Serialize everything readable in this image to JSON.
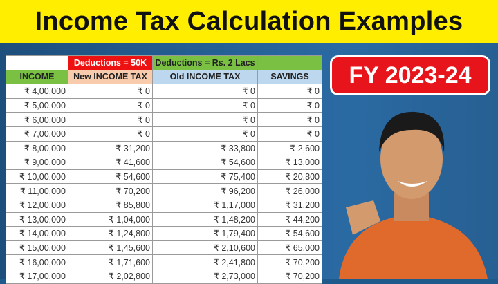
{
  "title": "Income Tax Calculation Examples",
  "badge": "FY 2023-24",
  "table": {
    "deductions_new": "Deductions = 50K",
    "deductions_old": "Deductions = Rs. 2 Lacs",
    "headers": [
      "INCOME",
      "New INCOME TAX",
      "Old INCOME TAX",
      "SAVINGS"
    ],
    "rows": [
      [
        "₹ 4,00,000",
        "₹ 0",
        "₹ 0",
        "₹ 0"
      ],
      [
        "₹ 5,00,000",
        "₹ 0",
        "₹ 0",
        "₹ 0"
      ],
      [
        "₹ 6,00,000",
        "₹ 0",
        "₹ 0",
        "₹ 0"
      ],
      [
        "₹ 7,00,000",
        "₹ 0",
        "₹ 0",
        "₹ 0"
      ],
      [
        "₹ 8,00,000",
        "₹ 31,200",
        "₹ 33,800",
        "₹ 2,600"
      ],
      [
        "₹ 9,00,000",
        "₹ 41,600",
        "₹ 54,600",
        "₹ 13,000"
      ],
      [
        "₹ 10,00,000",
        "₹ 54,600",
        "₹ 75,400",
        "₹ 20,800"
      ],
      [
        "₹ 11,00,000",
        "₹ 70,200",
        "₹ 96,200",
        "₹ 26,000"
      ],
      [
        "₹ 12,00,000",
        "₹ 85,800",
        "₹ 1,17,000",
        "₹ 31,200"
      ],
      [
        "₹ 13,00,000",
        "₹ 1,04,000",
        "₹ 1,48,200",
        "₹ 44,200"
      ],
      [
        "₹ 14,00,000",
        "₹ 1,24,800",
        "₹ 1,79,400",
        "₹ 54,600"
      ],
      [
        "₹ 15,00,000",
        "₹ 1,45,600",
        "₹ 2,10,600",
        "₹ 65,000"
      ],
      [
        "₹ 16,00,000",
        "₹ 1,71,600",
        "₹ 2,41,800",
        "₹ 70,200"
      ],
      [
        "₹ 17,00,000",
        "₹ 2,02,800",
        "₹ 2,73,000",
        "₹ 70,200"
      ]
    ]
  },
  "colors": {
    "title_bg": "#ffee00",
    "red": "#ee1111",
    "green": "#7ac143",
    "peach": "#f8cbad",
    "blue_header": "#bdd7ee"
  }
}
